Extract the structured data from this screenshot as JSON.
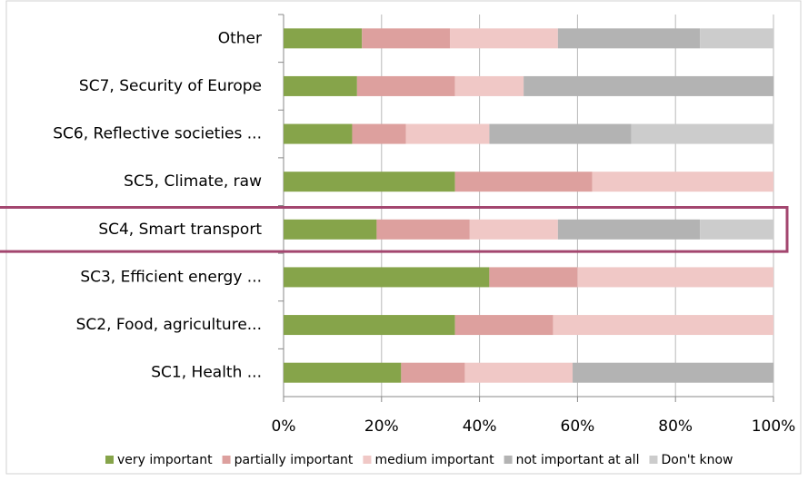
{
  "chart_data": {
    "type": "stacked_bar_horizontal",
    "categories": [
      "Other",
      "SC7, Security of Europe",
      "SC6, Reflective societies ...",
      "SC5, Climate, raw",
      "SC4, Smart transport",
      "SC3, Efficient energy ...",
      "SC2, Food, agriculture...",
      "SC1, Health ..."
    ],
    "series": [
      {
        "name": "very important",
        "color": "#86a44a",
        "values": [
          16,
          15,
          14,
          35,
          19,
          42,
          35,
          24
        ]
      },
      {
        "name": "partially important",
        "color": "#dda09e",
        "values": [
          18,
          20,
          11,
          28,
          19,
          18,
          20,
          13
        ]
      },
      {
        "name": "medium important",
        "color": "#f0c8c6",
        "values": [
          22,
          14,
          17,
          37,
          18,
          40,
          45,
          22
        ]
      },
      {
        "name": "not important at all",
        "color": "#b3b3b3",
        "values": [
          29,
          51,
          29,
          0,
          29,
          0,
          0,
          41
        ]
      },
      {
        "name": "Don't know",
        "color": "#cccccc",
        "values": [
          15,
          0,
          29,
          0,
          15,
          0,
          0,
          0
        ]
      }
    ],
    "xlim": [
      0,
      100
    ],
    "xticks": [
      {
        "value": 0,
        "label": "0%"
      },
      {
        "value": 20,
        "label": "20%"
      },
      {
        "value": 40,
        "label": "40%"
      },
      {
        "value": 60,
        "label": "60%"
      },
      {
        "value": 80,
        "label": "80%"
      },
      {
        "value": 100,
        "label": "100%"
      }
    ],
    "grid": true,
    "legend": "bottom"
  }
}
